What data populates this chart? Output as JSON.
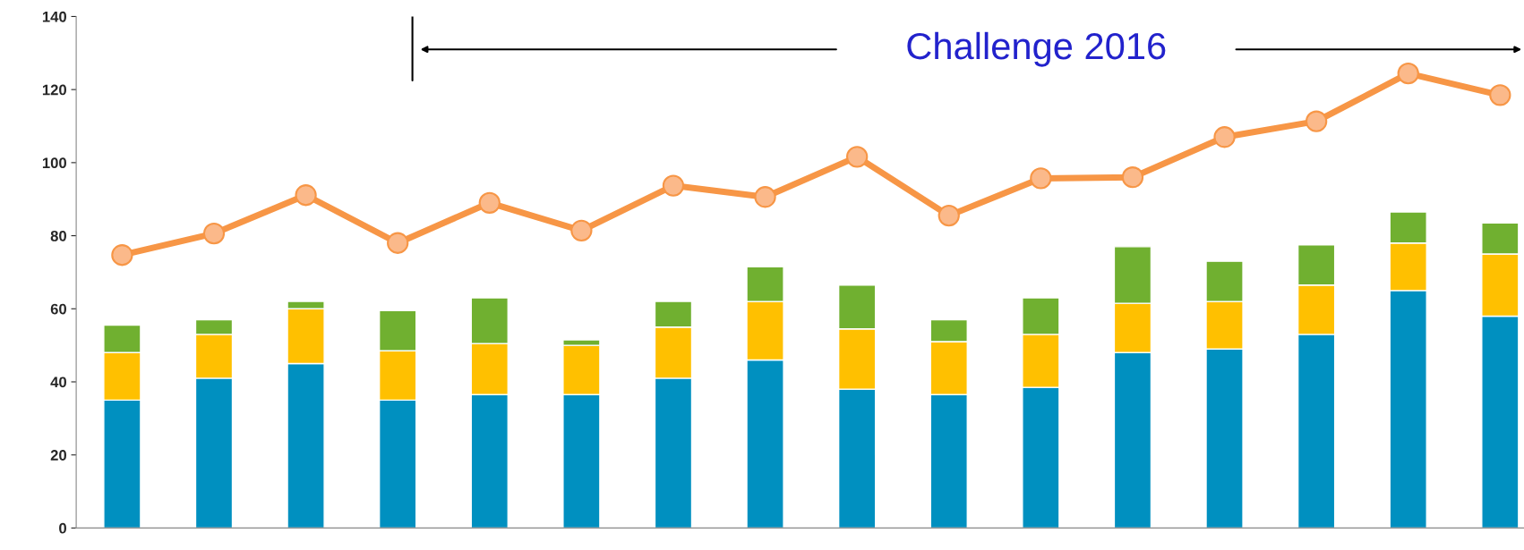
{
  "chart_data": {
    "type": "bar",
    "stacked": true,
    "categories": [
      null,
      null,
      null,
      null,
      null,
      null,
      null,
      null,
      null,
      null,
      null,
      null,
      null,
      null,
      null,
      null
    ],
    "series": [
      {
        "color": "#0090c0",
        "values": [
          35,
          41,
          45,
          35,
          36.5,
          36.5,
          41,
          46,
          38,
          36.5,
          38.5,
          48,
          49,
          53,
          65,
          58
        ]
      },
      {
        "color": "#ffc000",
        "values": [
          13,
          12,
          15,
          13.5,
          14,
          13.5,
          14,
          16,
          16.5,
          14.5,
          14.5,
          13.5,
          13,
          13.5,
          13,
          17
        ]
      },
      {
        "color": "#70b030",
        "values": [
          7.5,
          4,
          2,
          11,
          12.5,
          1.5,
          7,
          9.5,
          12,
          6,
          10,
          15.5,
          11,
          11,
          8.5,
          8.5
        ]
      },
      {
        "type": "line",
        "color": "#f79646",
        "marker": "circle",
        "values": [
          74.7,
          80.6,
          91.1,
          78,
          89,
          81.4,
          93.7,
          90.6,
          101.6,
          85.5,
          95.7,
          96,
          107,
          111.3,
          124.4,
          118.5
        ]
      }
    ],
    "ylim": [
      0,
      140
    ],
    "yticks": [
      0,
      20,
      40,
      60,
      80,
      100,
      120,
      140
    ],
    "grid": false,
    "legend": false,
    "tick_labels": "y",
    "annotations": [
      "Challenge 2016"
    ]
  }
}
